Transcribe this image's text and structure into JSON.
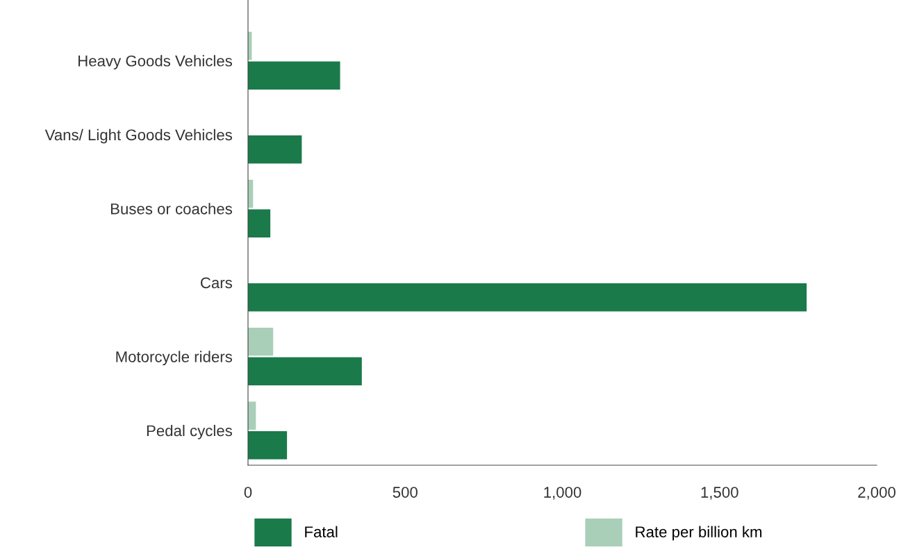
{
  "chart_data": {
    "type": "bar",
    "orientation": "horizontal",
    "categories": [
      "Heavy Goods Vehicles",
      "Vans/ Light Goods Vehicles",
      "Buses or coaches",
      "Cars",
      "Motorcycle riders",
      "Pedal cycles"
    ],
    "series": [
      {
        "name": "Fatal",
        "color": "#1a7a4a",
        "values": [
          293,
          171,
          71,
          1777,
          362,
          124
        ]
      },
      {
        "name": "Rate per billion km",
        "color": "#a9cfb8",
        "values": [
          12,
          null,
          16,
          null,
          80,
          25
        ]
      }
    ],
    "xlim": [
      0,
      2000
    ],
    "xticks": [
      0,
      {
        "value": 500,
        "label": "500"
      },
      {
        "value": 1000,
        "label": "1,000"
      },
      {
        "value": 1500,
        "label": "1,500"
      },
      {
        "value": 2000,
        "label": "2,000"
      }
    ],
    "grid": false,
    "legend": "bottom"
  }
}
